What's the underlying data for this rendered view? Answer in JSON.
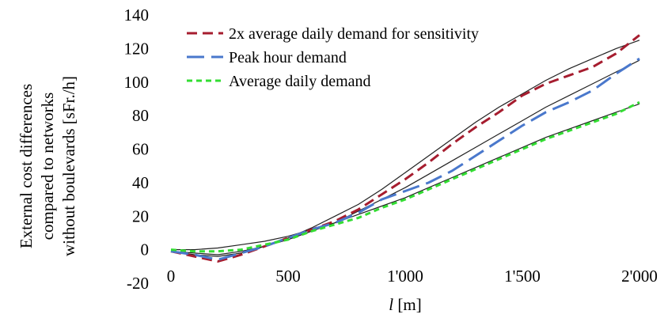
{
  "chart_data": {
    "type": "line",
    "ylabel_lines": [
      "External cost differences",
      "compared to networks",
      "without boulevards [sFr./h]"
    ],
    "xlabel_italic": "l",
    "xlabel_rest": " [m]",
    "xlim": [
      0,
      2000
    ],
    "ylim": [
      -20,
      140
    ],
    "x_ticks": [
      0,
      500,
      1000,
      1500,
      2000
    ],
    "x_tick_labels": [
      "0",
      "500",
      "1'000",
      "1'500",
      "2'000"
    ],
    "y_ticks": [
      -20,
      0,
      20,
      40,
      60,
      80,
      100,
      120,
      140
    ],
    "y_tick_labels": [
      "-20",
      "0",
      "20",
      "40",
      "60",
      "80",
      "100",
      "120",
      "140"
    ],
    "grid": false,
    "legend_position": "top-left",
    "series": [
      {
        "name": "2x average daily demand for sensitivity",
        "color": "#a61d2f",
        "style": "dashed",
        "x": [
          0,
          100,
          200,
          300,
          400,
          500,
          600,
          700,
          800,
          900,
          1000,
          1100,
          1200,
          1300,
          1400,
          1500,
          1600,
          1700,
          1800,
          1900,
          2000
        ],
        "y": [
          -1,
          -4,
          -7,
          -3,
          2,
          7,
          12,
          17,
          24,
          33,
          42,
          52,
          63,
          73,
          82,
          92,
          99,
          104,
          109,
          117,
          128
        ]
      },
      {
        "name": "Peak hour demand",
        "color": "#4a78cc",
        "style": "longdash",
        "x": [
          0,
          100,
          200,
          300,
          400,
          500,
          600,
          700,
          800,
          900,
          1000,
          1100,
          1200,
          1300,
          1400,
          1500,
          1600,
          1700,
          1800,
          1900,
          2000
        ],
        "y": [
          -1,
          -3,
          -6,
          -2,
          2,
          7,
          12,
          16,
          22,
          30,
          35,
          40,
          47,
          56,
          65,
          74,
          82,
          88,
          95,
          105,
          114
        ]
      },
      {
        "name": "Average daily demand",
        "color": "#33dd33",
        "style": "shortdash",
        "x": [
          0,
          100,
          200,
          300,
          400,
          500,
          600,
          700,
          800,
          900,
          1000,
          1100,
          1200,
          1300,
          1400,
          1500,
          1600,
          1700,
          1800,
          1900,
          2000
        ],
        "y": [
          0,
          -1,
          -1,
          0,
          3,
          6,
          11,
          15,
          19,
          25,
          30,
          36,
          42,
          48,
          54,
          60,
          66,
          71,
          76,
          81,
          88
        ]
      }
    ],
    "fit_curves": [
      {
        "color": "#222222",
        "x": [
          0,
          100,
          200,
          300,
          400,
          500,
          600,
          700,
          800,
          900,
          1000,
          1100,
          1200,
          1300,
          1400,
          1500,
          1600,
          1700,
          1800,
          1900,
          2000
        ],
        "y": [
          -1,
          -3,
          -4,
          -2,
          2,
          7,
          13,
          20,
          27,
          36,
          46,
          56,
          66,
          76,
          85,
          93,
          101,
          108,
          114,
          120,
          125
        ]
      },
      {
        "color": "#222222",
        "x": [
          0,
          100,
          200,
          300,
          400,
          500,
          600,
          700,
          800,
          900,
          1000,
          1100,
          1200,
          1300,
          1400,
          1500,
          1600,
          1700,
          1800,
          1900,
          2000
        ],
        "y": [
          -1,
          -2,
          -3,
          -1,
          2,
          6,
          11,
          16,
          23,
          30,
          37,
          45,
          53,
          61,
          69,
          77,
          85,
          92,
          99,
          106,
          113
        ]
      },
      {
        "color": "#222222",
        "x": [
          0,
          100,
          200,
          300,
          400,
          500,
          600,
          700,
          800,
          900,
          1000,
          1100,
          1200,
          1300,
          1400,
          1500,
          1600,
          1700,
          1800,
          1900,
          2000
        ],
        "y": [
          0,
          0,
          1,
          3,
          5,
          8,
          12,
          16,
          21,
          26,
          31,
          37,
          43,
          49,
          55,
          61,
          67,
          72,
          77,
          82,
          87
        ]
      }
    ]
  }
}
